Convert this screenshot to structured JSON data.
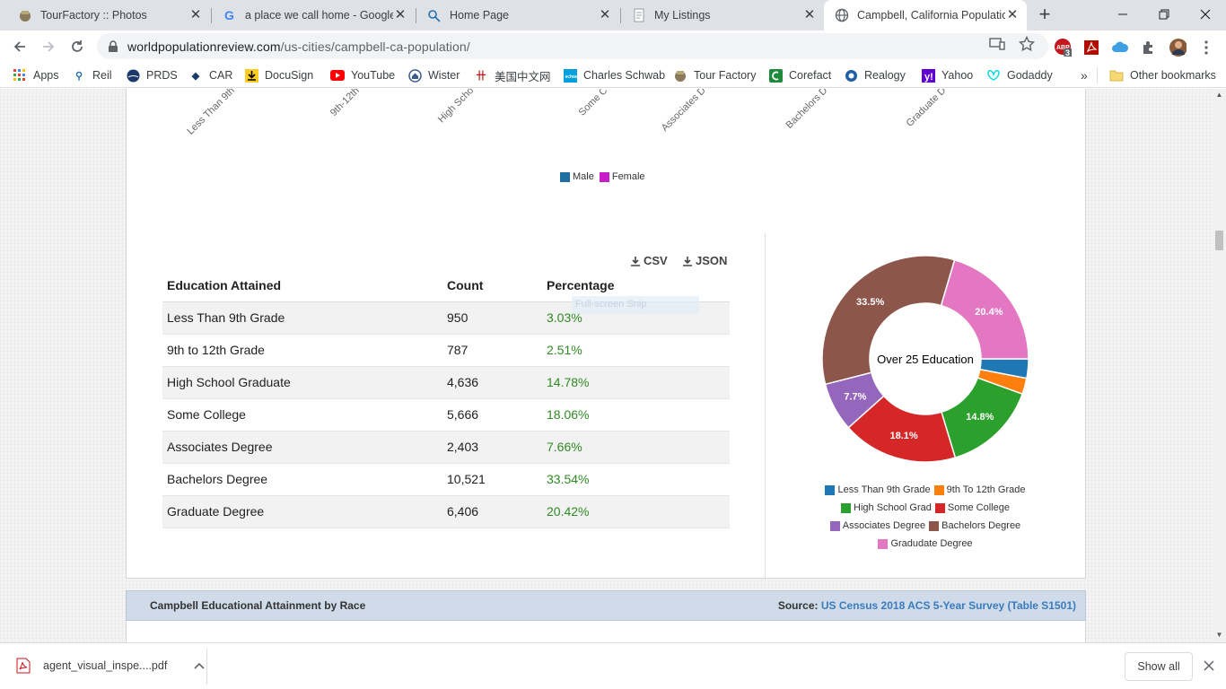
{
  "browser": {
    "tabs": [
      {
        "title": "TourFactory :: Photos",
        "icon": "tourfactory-icon",
        "active": false
      },
      {
        "title": "a place we call home - Google",
        "icon": "google-icon",
        "active": false
      },
      {
        "title": "Home Page",
        "icon": "homepage-icon",
        "active": false
      },
      {
        "title": "My Listings",
        "icon": "document-icon",
        "active": false
      },
      {
        "title": "Campbell, California Populatio",
        "icon": "globe-icon",
        "active": true
      }
    ],
    "url_domain": "worldpopulationreview.com",
    "url_path": "/us-cities/campbell-ca-population/",
    "ext_badge": "3",
    "bookmarks": [
      {
        "label": "Apps",
        "icon": "apps-grid-icon"
      },
      {
        "label": "Reil",
        "icon": "reil-icon"
      },
      {
        "label": "PRDS",
        "icon": "prds-icon"
      },
      {
        "label": "CAR",
        "icon": "car-icon"
      },
      {
        "label": "DocuSign",
        "icon": "docusign-icon"
      },
      {
        "label": "YouTube",
        "icon": "youtube-icon"
      },
      {
        "label": "Wister",
        "icon": "wister-icon"
      },
      {
        "label": "美国中文网",
        "icon": "chinese-site-icon"
      },
      {
        "label": "Charles Schwab",
        "icon": "schwab-icon"
      },
      {
        "label": "Tour Factory",
        "icon": "tourfactory-icon"
      },
      {
        "label": "Corefact",
        "icon": "corefact-icon"
      },
      {
        "label": "Realogy",
        "icon": "realogy-icon"
      },
      {
        "label": "Yahoo",
        "icon": "yahoo-icon"
      },
      {
        "label": "Godaddy",
        "icon": "godaddy-icon"
      }
    ],
    "bookmarks_more": "»",
    "other_bookmarks": "Other bookmarks"
  },
  "page": {
    "top_chart": {
      "x_labels": [
        "Less Than 9th",
        "9th-12th",
        "High Scho",
        "Some C",
        "Associates D",
        "Bachelors D",
        "Graduate D"
      ],
      "legend": [
        {
          "name": "Male",
          "color": "#1f6fa0"
        },
        {
          "name": "Female",
          "color": "#c81ec8"
        }
      ]
    },
    "downloads": {
      "csv": "CSV",
      "json": "JSON"
    },
    "table": {
      "headers": [
        "Education Attained",
        "Count",
        "Percentage"
      ],
      "rows": [
        [
          "Less Than 9th Grade",
          "950",
          "3.03%"
        ],
        [
          "9th to 12th Grade",
          "787",
          "2.51%"
        ],
        [
          "High School Graduate",
          "4,636",
          "14.78%"
        ],
        [
          "Some College",
          "5,666",
          "18.06%"
        ],
        [
          "Associates Degree",
          "2,403",
          "7.66%"
        ],
        [
          "Bachelors Degree",
          "10,521",
          "33.54%"
        ],
        [
          "Graduate Degree",
          "6,406",
          "20.42%"
        ]
      ]
    },
    "snip_overlay": "Full-screen Snip",
    "race_section": {
      "title": "Campbell Educational Attainment by Race",
      "source_label": "Source:",
      "source_link": "US Census 2018 ACS 5-Year Survey (Table S1501)"
    }
  },
  "chart_data": {
    "type": "pie",
    "title": "Over 25 Education",
    "categories": [
      "Less Than 9th Grade",
      "9th To 12th Grade",
      "High School Grad",
      "Some College",
      "Associates Degree",
      "Bachelors Degree",
      "Gradudate Degree"
    ],
    "values": [
      3.03,
      2.51,
      14.78,
      18.06,
      7.66,
      33.54,
      20.42
    ],
    "data_labels": [
      "",
      "",
      "14.8%",
      "18.1%",
      "7.7%",
      "33.5%",
      "20.4%"
    ],
    "colors": [
      "#1f77b4",
      "#ff7f0e",
      "#2ca02c",
      "#d62728",
      "#9467bd",
      "#8c564b",
      "#e377c2"
    ],
    "legend_position": "bottom"
  },
  "download_bar": {
    "file": "agent_visual_inspe....pdf",
    "show_all": "Show all"
  }
}
